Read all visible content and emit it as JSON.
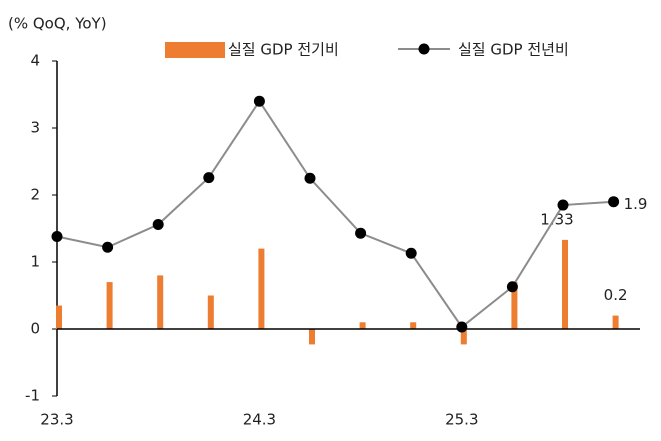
{
  "chart_data": {
    "type": "bar-line",
    "y_axis_label": "(% QoQ, YoY)",
    "categories": [
      "23.3",
      null,
      null,
      null,
      "24.3",
      null,
      null,
      null,
      "25.3",
      null,
      null,
      null
    ],
    "series": [
      {
        "name": "실질 GDP 전기비",
        "type": "bar",
        "color": "#ed7d31",
        "values": [
          0.35,
          0.7,
          0.8,
          0.5,
          1.2,
          -0.23,
          0.1,
          0.1,
          -0.23,
          0.7,
          1.33,
          0.2
        ],
        "value_labels": [
          null,
          null,
          null,
          null,
          null,
          null,
          null,
          null,
          null,
          null,
          "1.33",
          "0.2"
        ]
      },
      {
        "name": "실질 GDP 전년비",
        "type": "line",
        "color": "#8c8c8c",
        "marker_color": "#000000",
        "values": [
          1.38,
          1.22,
          1.56,
          2.26,
          3.4,
          2.25,
          1.43,
          1.13,
          0.03,
          0.63,
          1.85,
          1.9
        ],
        "value_labels": [
          null,
          null,
          null,
          null,
          null,
          null,
          null,
          null,
          null,
          null,
          null,
          "1.9"
        ]
      }
    ],
    "ylim": [
      -1,
      4
    ],
    "yticks": [
      -1,
      0,
      1,
      2,
      3,
      4
    ],
    "grid": false,
    "legend": "top"
  }
}
